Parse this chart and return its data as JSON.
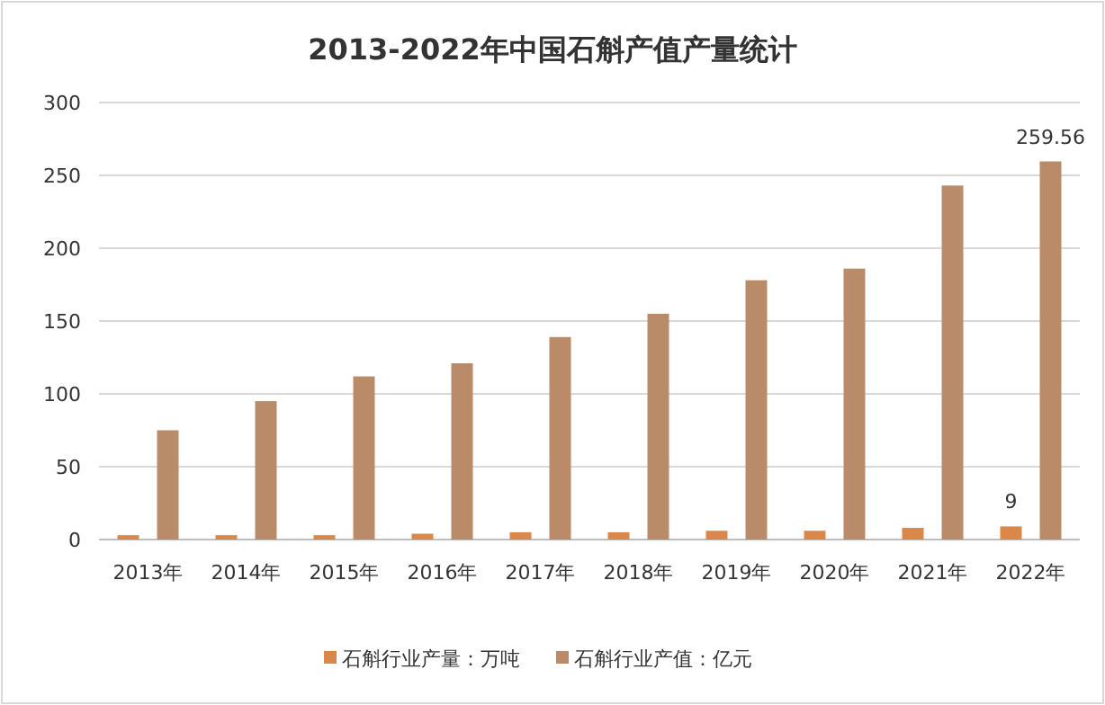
{
  "chart_data": {
    "type": "bar",
    "title": "2013-2022年中国石斛产值产量统计",
    "categories": [
      "2013年",
      "2014年",
      "2015年",
      "2016年",
      "2017年",
      "2018年",
      "2019年",
      "2020年",
      "2021年",
      "2022年"
    ],
    "series": [
      {
        "name": "石斛行业产量：万吨",
        "color": "#d9884a",
        "values": [
          3,
          3,
          3,
          4,
          5,
          5,
          6,
          6,
          8,
          9
        ],
        "value_labels": [
          null,
          null,
          null,
          null,
          null,
          null,
          null,
          null,
          null,
          "9"
        ]
      },
      {
        "name": "石斛行业产值：亿元",
        "color": "#b98b68",
        "values": [
          75,
          95,
          112,
          121,
          139,
          155,
          178,
          186,
          243,
          259.56
        ],
        "value_labels": [
          null,
          null,
          null,
          null,
          null,
          null,
          null,
          null,
          null,
          "259.56"
        ]
      }
    ],
    "ylim": [
      0,
      300
    ],
    "yticks": [
      0,
      50,
      100,
      150,
      200,
      250,
      300
    ],
    "grid": "y",
    "legend": "bottom"
  }
}
